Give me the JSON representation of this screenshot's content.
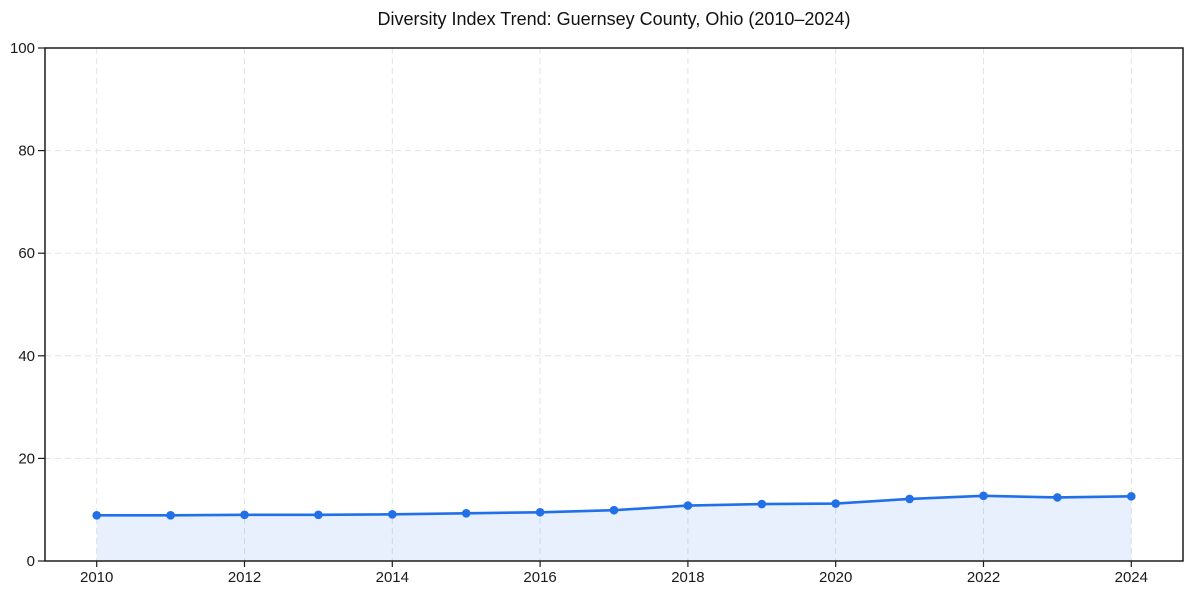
{
  "chart_data": {
    "type": "area",
    "title": "Diversity Index Trend: Guernsey County, Ohio (2010–2024)",
    "x": [
      2010,
      2011,
      2012,
      2013,
      2014,
      2015,
      2016,
      2017,
      2018,
      2019,
      2020,
      2021,
      2022,
      2023,
      2024
    ],
    "values": [
      8.9,
      8.9,
      9.0,
      9.0,
      9.1,
      9.3,
      9.5,
      9.9,
      10.8,
      11.1,
      11.2,
      12.1,
      12.7,
      12.4,
      12.6
    ],
    "series_name": "Diversity Index",
    "xlabel": "",
    "ylabel": "",
    "ylim": [
      0,
      100
    ],
    "yticks": [
      0,
      20,
      40,
      60,
      80,
      100
    ],
    "xticks": [
      2010,
      2012,
      2014,
      2016,
      2018,
      2020,
      2022,
      2024
    ],
    "grid": true,
    "grid_style": "dashed",
    "legend": "none",
    "colors": {
      "line": "#2170e8",
      "marker": "#2170e8",
      "fill": "rgba(33,112,232,0.10)",
      "grid": "#e3e3e3",
      "frame": "#1c1c1c",
      "tick_label": "#1a1a1a",
      "title": "#111111",
      "background": "#ffffff"
    }
  }
}
